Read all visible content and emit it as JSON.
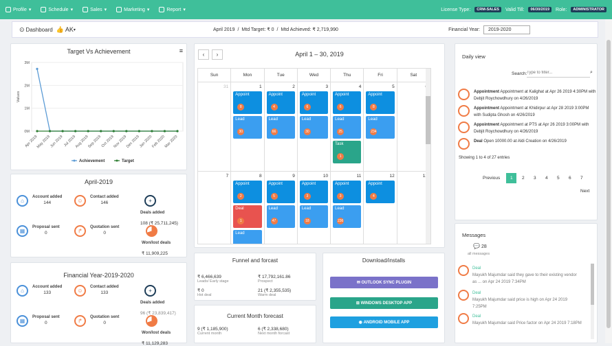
{
  "topbar": {
    "nav": [
      "Profile",
      "Schedule",
      "Sales",
      "Marketing",
      "Report"
    ],
    "license_label": "License Type:",
    "license_value": "CRM-SALES",
    "valid_label": "Valid Till:",
    "valid_value": "06/30/2019",
    "role_label": "Role:",
    "role_value": "ADMINISTRATOR"
  },
  "header": {
    "dashboard": "Dashboard",
    "user": "AK",
    "month": "April 2019",
    "mtd_target": "Mtd Target: ₹ 0",
    "mtd_achieved": "Mtd Achieved: ₹ 2,719,990",
    "fy_label": "Financial Year:",
    "fy_value": "2019-2020"
  },
  "chart_data": {
    "type": "line",
    "title": "Target Vs Achievement",
    "categories": [
      "Apr 2019",
      "May 2019",
      "Jun 2019",
      "Jul 2019",
      "Aug 2019",
      "Sep 2019",
      "Oct 2019",
      "Nov 2019",
      "Dec 2019",
      "Jan 2020",
      "Feb 2020",
      "Mar 2020"
    ],
    "ylabel": "Values",
    "ytick_labels": [
      "0M",
      "1M",
      "2M",
      "3M"
    ],
    "ylim": [
      0,
      3000000
    ],
    "series": [
      {
        "name": "Achievement",
        "color": "#5b9bd5",
        "values": [
          2719990,
          0,
          0,
          0,
          0,
          0,
          0,
          0,
          0,
          0,
          0,
          0
        ]
      },
      {
        "name": "Target",
        "color": "#2e7d32",
        "values": [
          0,
          0,
          0,
          0,
          0,
          0,
          0,
          0,
          0,
          0,
          0,
          0
        ]
      }
    ]
  },
  "april": {
    "title": "April-2019",
    "account_label": "Account added",
    "account_val": "144",
    "contact_label": "Contact added",
    "contact_val": "146",
    "deals_label": "Deals added",
    "deals_val": "108 (₹ 25,711,245)",
    "proposal_label": "Proposal sent",
    "proposal_val": "0",
    "quotation_label": "Quotation sent",
    "quotation_val": "0",
    "wonlost_label": "Won/lost deals",
    "wonlost_val": "₹ 11,909,225"
  },
  "fy": {
    "title": "Financial Year-2019-2020",
    "account_label": "Account added",
    "account_val": "133",
    "contact_label": "Contact added",
    "contact_val": "133",
    "deals_label": "Deals added",
    "deals_val": "96 (₹ 23,839,417)",
    "proposal_label": "Proposal sent",
    "proposal_val": "0",
    "quotation_label": "Quotation sent",
    "quotation_val": "0",
    "wonlost_label": "Won/lost deals",
    "wonlost_val": "₹ 11,129,283"
  },
  "calendar": {
    "title": "April 1 – 30, 2019",
    "days": [
      "Sun",
      "Mon",
      "Tue",
      "Wed",
      "Thu",
      "Fri",
      "Sat"
    ],
    "week1": [
      "31",
      "1",
      "2",
      "3",
      "4",
      "5",
      "6"
    ],
    "week2": [
      "7",
      "8",
      "9",
      "10",
      "11",
      "12",
      "13"
    ],
    "ev_appoint": "Appoint",
    "ev_lead": "Lead",
    "ev_task": "Task",
    "ev_deal": "Deal",
    "w1_appoint": [
      "8",
      "4",
      "6",
      "6",
      "8"
    ],
    "w1_lead": [
      "30",
      "66",
      "30",
      "25",
      "234"
    ],
    "w1_task": "1",
    "w2_appoint": [
      "2",
      "5",
      "3",
      "3",
      "4"
    ],
    "w2_deal": "1",
    "w2_lead": [
      "47",
      "18",
      "236"
    ]
  },
  "funnel": {
    "title": "Funnel and forcast",
    "leads_val": "₹ 6,466,639",
    "leads_label": "Leads/ Early stage",
    "prospect_val": "₹ 17,792,161.86",
    "prospect_label": "Prospect",
    "hot_val": "₹ 0",
    "hot_label": "Hot deal",
    "warm_val": "21 (₹ 2,355,535)",
    "warm_label": "Warm deal"
  },
  "forecast": {
    "title": "Current Month forecast",
    "cur_val": "9 (₹ 1,185,900)",
    "cur_label": "Current month",
    "next_val": "6 (₹ 2,338,680)",
    "next_label": "Next month forcast"
  },
  "downloads": {
    "title": "Download/installs",
    "outlook": "OUTLOOK SYNC PLUGIN",
    "windows": "WINDOWS DESKTOP APP",
    "android": "ANDROID MOBILE APP"
  },
  "daily": {
    "title": "Daily view",
    "search_label": "Search:",
    "search_ph": "Type to filter...",
    "entries": [
      {
        "type": "Appointment",
        "text": "Appointment at Kalighat at Apr 26 2019 4:30PM with Debjit Roychowdhury on 4/26/2019"
      },
      {
        "type": "Appointment",
        "text": "Appointment at Khidirpur at Apr 28 2019 3:00PM with Sudipta Ghosh on 4/26/2019"
      },
      {
        "type": "Appointment",
        "text": "Appointment at PTS at Apr 26 2019 3:00PM with Debjit Roychowdhury on 4/26/2019"
      },
      {
        "type": "Deal",
        "text": "Open 10000.00 at Aldi Creation on 4/26/2019"
      }
    ],
    "showing": "Showing 1 to 4 of 27 entries",
    "prev": "Previous",
    "next": "Next",
    "pages": [
      "1",
      "2",
      "3",
      "4",
      "5",
      "6",
      "7"
    ]
  },
  "messages": {
    "title": "Messages",
    "count": "28",
    "all": "all messages",
    "items": [
      {
        "type": "Deal",
        "text": "Mayukh Majumdar said they gave to their existing vendor as ... on Apr 24 2019 7:34PM"
      },
      {
        "type": "Deal",
        "text": "Mayukh Majumdar said price is high on Apr 24 2019 7:25PM"
      },
      {
        "type": "Deal",
        "text": "Mayukh Majumdar said Price factor on Apr 24 2019 7:18PM"
      }
    ]
  }
}
